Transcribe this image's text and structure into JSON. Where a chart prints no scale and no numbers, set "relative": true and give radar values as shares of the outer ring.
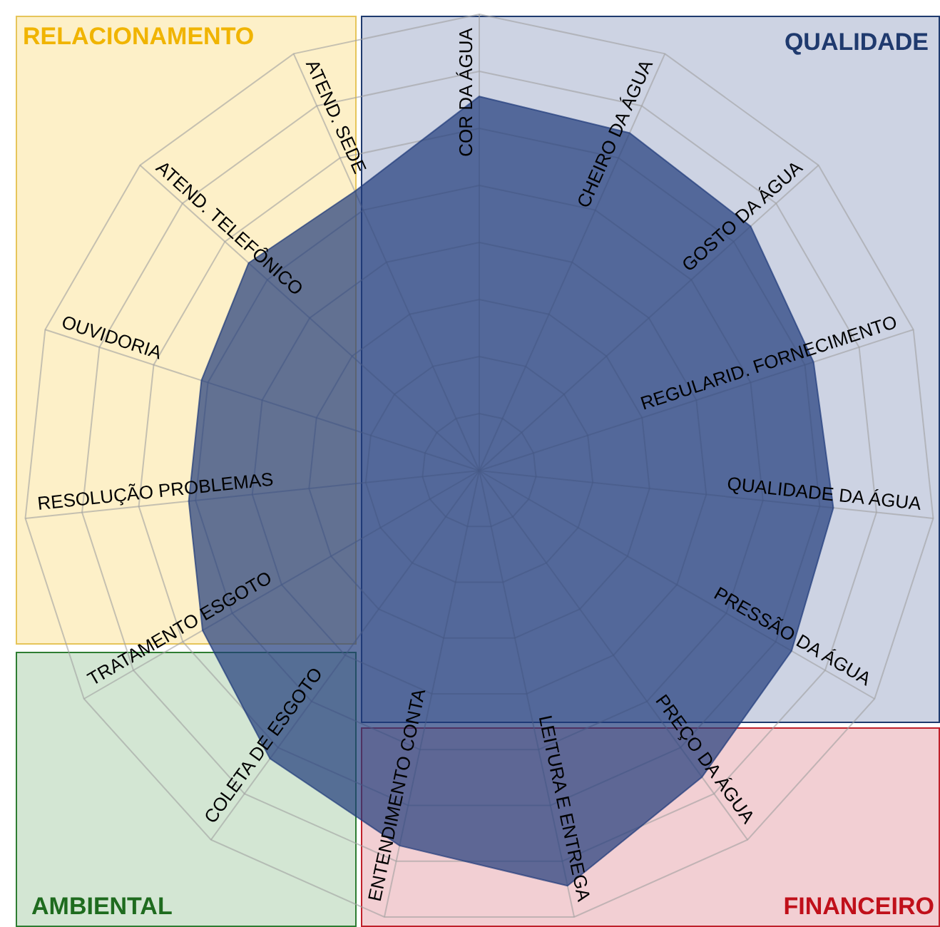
{
  "chart_data": {
    "type": "radar",
    "relative": true,
    "grid": true,
    "categories": [
      "COR DA ÁGUA",
      "CHEIRO DA ÁGUA",
      "GOSTO DA ÁGUA",
      "REGULARID. FORNECIMENTO",
      "QUALIDADE DA ÁGUA",
      "PRESSÃO DA ÁGUA",
      "PREÇO DA ÁGUA",
      "LEITURA E ENTREGA",
      "ENTENDIMENTO CONTA",
      "COLETA DE ESGOTO",
      "TRATAMENTO ESGOTO",
      "RESOLUÇÃO PROBLEMAS",
      "OUVIDORIA",
      "ATEND. TELEFÔNICO",
      "ATEND. SEDE"
    ],
    "series": [
      {
        "color": "#1f3a7a",
        "values": [
          0.82,
          0.81,
          0.8,
          0.77,
          0.78,
          0.79,
          0.83,
          0.93,
          0.84,
          0.78,
          0.7,
          0.64,
          0.64,
          0.68,
          0.67
        ]
      }
    ],
    "annotations": [
      "RELACIONAMENTO",
      "QUALIDADE",
      "AMBIENTAL",
      "FINANCEIRO"
    ]
  }
}
